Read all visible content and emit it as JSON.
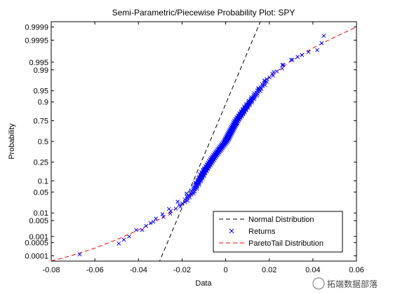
{
  "watermark": "拓端数据部落",
  "chart_data": {
    "type": "scatter",
    "title": "Semi-Parametric/Piecewise Probability Plot: SPY",
    "xlabel": "Data",
    "ylabel": "Probability",
    "xlim": [
      -0.08,
      0.06
    ],
    "ylim_probability": [
      5e-05,
      0.99995
    ],
    "y_scale": "normal-probability",
    "grid": false,
    "legend_position": "bottom-right",
    "x_ticks": [
      -0.08,
      -0.06,
      -0.04,
      -0.02,
      0,
      0.02,
      0.04,
      0.06
    ],
    "x_tick_labels": [
      "-0.08",
      "-0.06",
      "-0.04",
      "-0.02",
      "0",
      "0.02",
      "0.04",
      "0.06"
    ],
    "y_ticks": [
      0.0001,
      0.0005,
      0.001,
      0.005,
      0.01,
      0.05,
      0.1,
      0.25,
      0.5,
      0.75,
      0.9,
      0.95,
      0.99,
      0.995,
      0.9995,
      0.9999
    ],
    "y_tick_labels": [
      "0.0001",
      "0.0005",
      "0.001",
      "0.005",
      "0.01",
      "0.05",
      "0.1",
      "0.25",
      "0.5",
      "0.75",
      "0.9",
      "0.95",
      "0.99",
      "0.995",
      "0.9995",
      "0.9999"
    ],
    "colors": {
      "normal": "#000000",
      "returns": "#0000ff",
      "pareto": "#ff0000"
    },
    "series": [
      {
        "name": "Normal Distribution",
        "kind": "line",
        "style": "dashed",
        "x": [
          -0.0303,
          0.0159
        ],
        "y": [
          5e-05,
          0.99995
        ]
      },
      {
        "name": "Returns",
        "kind": "markers",
        "marker": "x",
        "x": [
          -0.067,
          -0.049,
          -0.0467,
          -0.0443,
          -0.0383,
          -0.0365,
          -0.0345,
          -0.032,
          -0.029,
          -0.026,
          -0.022,
          -0.018,
          -0.014,
          -0.01,
          -0.006,
          -0.003,
          0.0,
          0.002,
          0.005,
          0.008,
          0.01,
          0.012,
          0.015,
          0.018,
          0.022,
          0.026,
          0.03,
          0.033,
          0.035,
          0.038,
          0.042,
          0.044,
          0.045
        ],
        "y": [
          0.00012,
          0.00045,
          0.0007,
          0.001,
          0.002,
          0.003,
          0.004,
          0.006,
          0.009,
          0.014,
          0.025,
          0.045,
          0.09,
          0.18,
          0.3,
          0.4,
          0.5,
          0.6,
          0.72,
          0.82,
          0.88,
          0.92,
          0.955,
          0.975,
          0.988,
          0.9935,
          0.996,
          0.997,
          0.9975,
          0.9982,
          0.9985,
          0.9993,
          0.9997
        ]
      },
      {
        "name": "ParetoTail Distribution",
        "kind": "line",
        "style": "dashed",
        "x": [
          -0.08,
          -0.07,
          -0.06,
          -0.05,
          -0.04,
          -0.03,
          -0.02,
          -0.015,
          -0.01,
          -0.005,
          0.0,
          0.005,
          0.01,
          0.015,
          0.02,
          0.03,
          0.04,
          0.05,
          0.06
        ],
        "y": [
          5e-05,
          0.00011,
          0.00026,
          0.0007,
          0.002,
          0.006,
          0.02,
          0.05,
          0.16,
          0.32,
          0.5,
          0.75,
          0.88,
          0.95,
          0.982,
          0.9955,
          0.9988,
          0.99965,
          0.9999
        ]
      }
    ]
  }
}
